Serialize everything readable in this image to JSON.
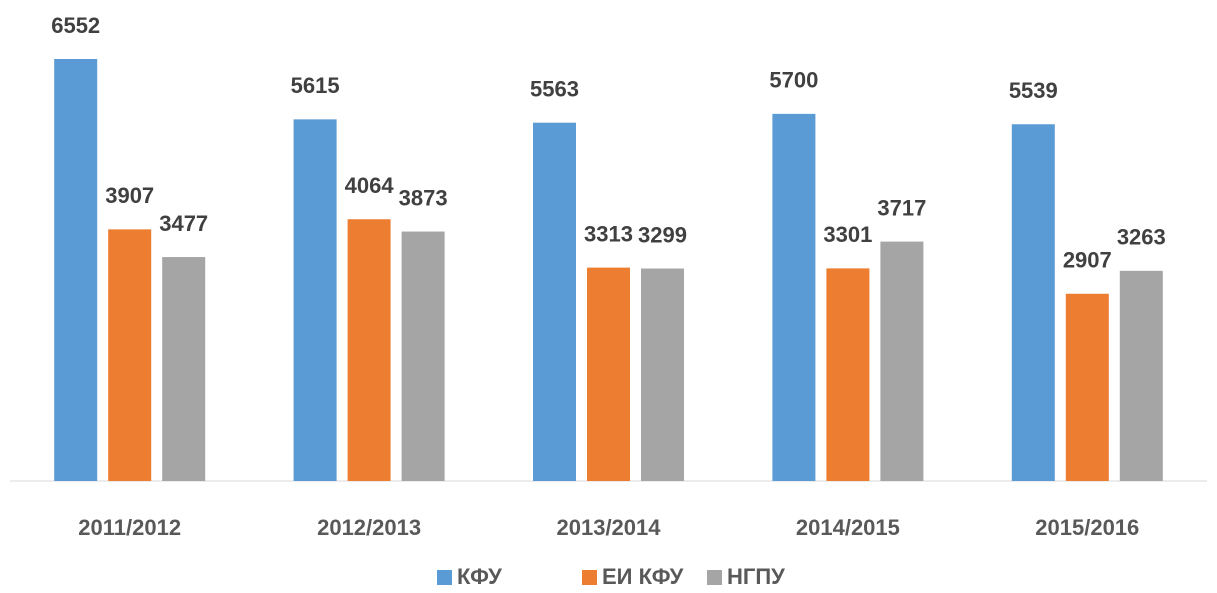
{
  "chart_data": {
    "type": "bar",
    "categories": [
      "2011/2012",
      "2012/2013",
      "2013/2014",
      "2014/2015",
      "2015/2016"
    ],
    "series": [
      {
        "name": "КФУ",
        "color": "#5b9bd5",
        "values": [
          6552,
          5615,
          5563,
          5700,
          5539
        ]
      },
      {
        "name": "ЕИ КФУ",
        "color": "#ed7d31",
        "values": [
          3907,
          4064,
          3313,
          3301,
          2907
        ]
      },
      {
        "name": "НГПУ",
        "color": "#a5a5a5",
        "values": [
          3477,
          3873,
          3299,
          3717,
          3263
        ]
      }
    ],
    "legend": "bottom"
  }
}
